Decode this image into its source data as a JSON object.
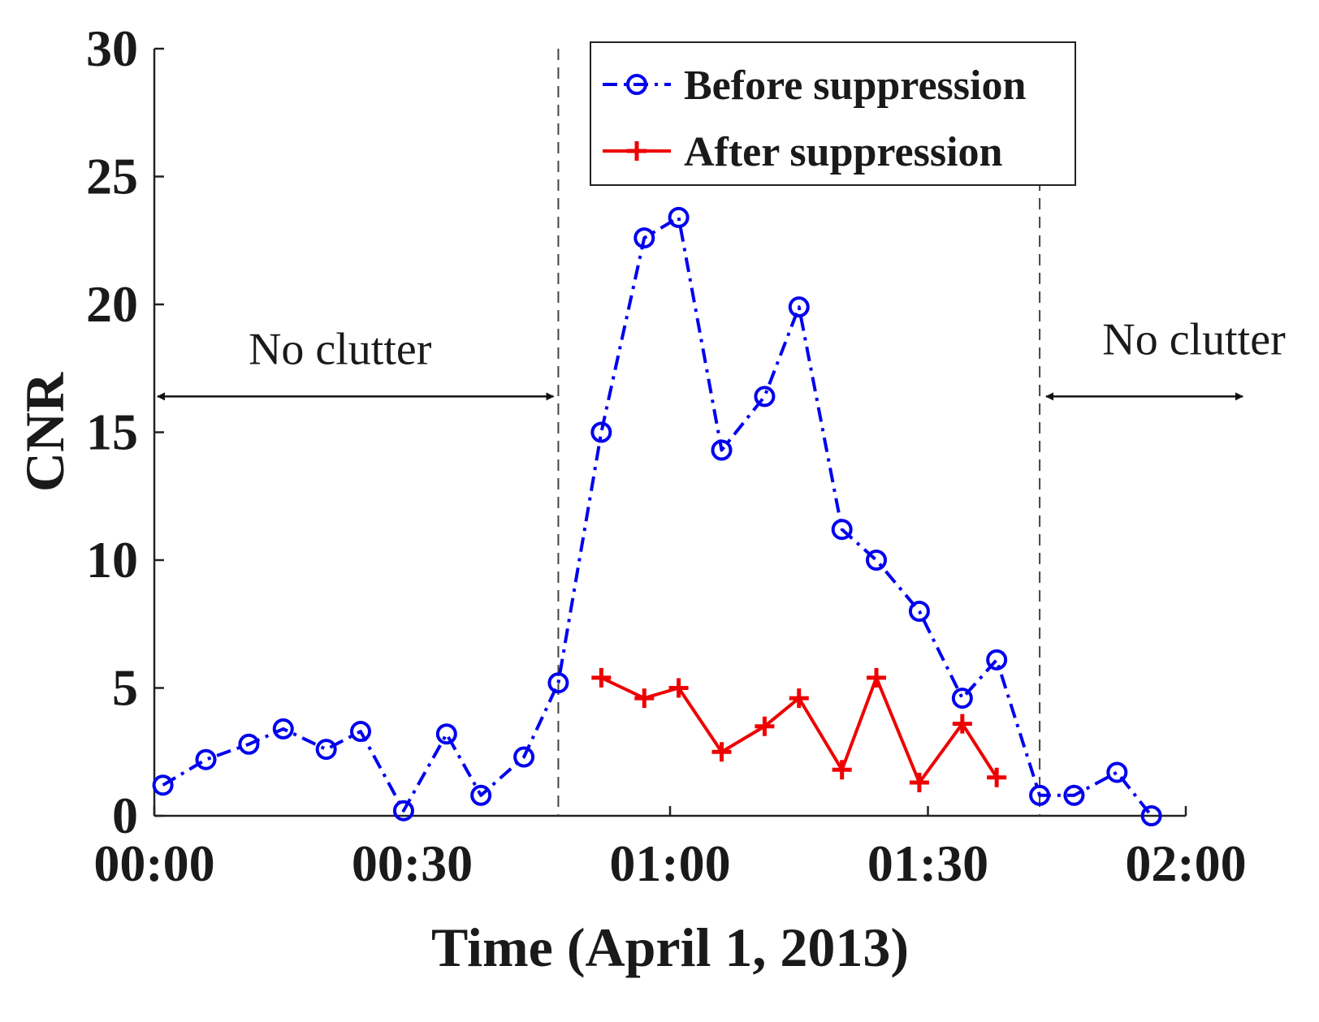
{
  "chart_data": {
    "type": "line",
    "title": "",
    "xlabel": "Time (April 1, 2013)",
    "ylabel": "CNR",
    "xlim": [
      "00:00",
      "02:00"
    ],
    "ylim": [
      0,
      30
    ],
    "x_ticks": [
      "00:00",
      "00:30",
      "01:00",
      "01:30",
      "02:00"
    ],
    "y_ticks": [
      "0",
      "5",
      "10",
      "15",
      "20",
      "25",
      "30"
    ],
    "grid": false,
    "legend_position": "top-center",
    "series": [
      {
        "name": "Before suppression",
        "color": "#0000ee",
        "line_style": "dash-dot",
        "marker": "circle",
        "x": [
          "00:01",
          "00:06",
          "00:11",
          "00:15",
          "00:20",
          "00:24",
          "00:29",
          "00:34",
          "00:38",
          "00:43",
          "00:47",
          "00:52",
          "00:57",
          "01:01",
          "01:06",
          "01:11",
          "01:15",
          "01:20",
          "01:24",
          "01:29",
          "01:34",
          "01:38",
          "01:43",
          "01:47",
          "01:52",
          "01:56"
        ],
        "values": [
          1.2,
          2.2,
          2.8,
          3.4,
          2.6,
          3.3,
          0.2,
          3.2,
          0.8,
          2.3,
          5.2,
          15.0,
          22.6,
          23.4,
          14.3,
          16.4,
          19.9,
          11.2,
          10.0,
          8.0,
          4.6,
          6.1,
          0.8,
          0.8,
          1.7,
          0.0
        ]
      },
      {
        "name": "After suppression",
        "color": "#ee0000",
        "line_style": "solid",
        "marker": "plus",
        "x": [
          "00:52",
          "00:57",
          "01:01",
          "01:06",
          "01:11",
          "01:15",
          "01:20",
          "01:24",
          "01:29",
          "01:34",
          "01:38"
        ],
        "values": [
          5.4,
          4.6,
          5.0,
          2.5,
          3.5,
          4.6,
          1.8,
          5.4,
          1.3,
          3.6,
          1.5
        ]
      }
    ],
    "reference_lines": [
      {
        "x": "00:47",
        "style": "dashed"
      },
      {
        "x": "01:43",
        "style": "dashed"
      }
    ],
    "annotations": [
      {
        "text": "No clutter",
        "from": "00:00",
        "to": "00:47",
        "y": 16.4
      },
      {
        "text": "No clutter",
        "from": "01:43",
        "to": "02:00",
        "y": 16.4
      }
    ]
  }
}
